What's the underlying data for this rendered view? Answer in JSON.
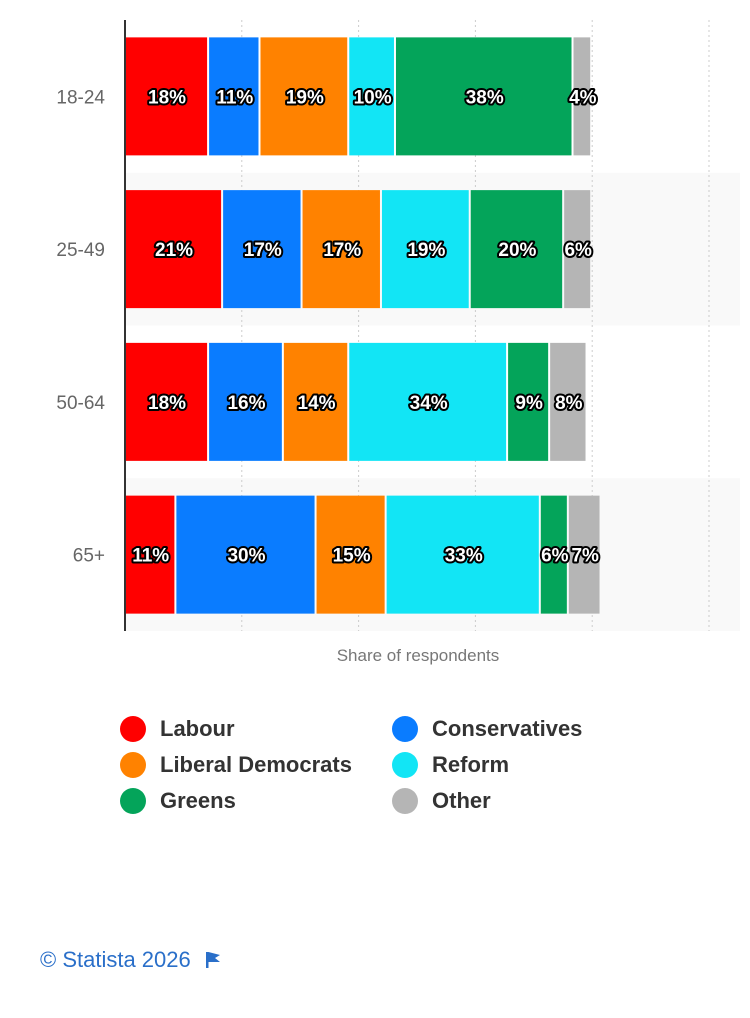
{
  "chart_data": {
    "type": "bar",
    "orientation": "horizontal",
    "stacked": true,
    "title": "",
    "xlabel": "Share of respondents",
    "ylabel": "",
    "xlim": [
      0,
      125
    ],
    "grid": true,
    "legend_position": "bottom",
    "categories": [
      "18-24",
      "25-49",
      "50-64",
      "65+"
    ],
    "series": [
      {
        "name": "Labour",
        "color": "#ff0000",
        "values": [
          18,
          21,
          18,
          11
        ]
      },
      {
        "name": "Conservatives",
        "color": "#0a7cff",
        "values": [
          11,
          17,
          16,
          30
        ]
      },
      {
        "name": "Liberal Democrats",
        "color": "#ff8200",
        "values": [
          19,
          17,
          14,
          15
        ]
      },
      {
        "name": "Reform",
        "color": "#12e5f5",
        "values": [
          10,
          19,
          34,
          33
        ]
      },
      {
        "name": "Greens",
        "color": "#04a45a",
        "values": [
          38,
          20,
          9,
          6
        ]
      },
      {
        "name": "Other",
        "color": "#b5b5b5",
        "values": [
          4,
          6,
          8,
          7
        ]
      }
    ]
  },
  "legend": [
    {
      "label": "Labour",
      "color": "#ff0000"
    },
    {
      "label": "Conservatives",
      "color": "#0a7cff"
    },
    {
      "label": "Liberal Democrats",
      "color": "#ff8200"
    },
    {
      "label": "Reform",
      "color": "#12e5f5"
    },
    {
      "label": "Greens",
      "color": "#04a45a"
    },
    {
      "label": "Other",
      "color": "#b5b5b5"
    }
  ],
  "footer": {
    "credit": "© Statista 2026"
  }
}
